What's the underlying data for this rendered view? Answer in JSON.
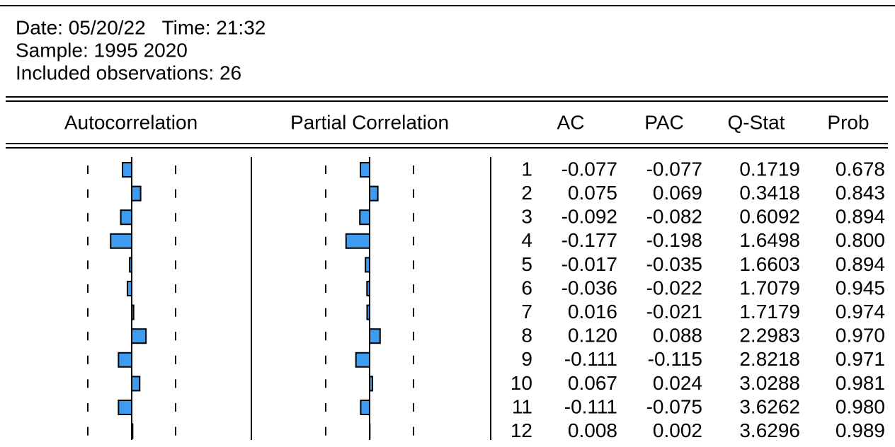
{
  "header": {
    "line1": "Date: 05/20/22   Time: 21:32",
    "line2": "Sample: 1995 2020",
    "line3": "Included observations: 26"
  },
  "table": {
    "columns": [
      "Autocorrelation",
      "Partial Correlation",
      "AC",
      "PAC",
      "Q-Stat",
      "Prob"
    ],
    "rows": [
      [
        "1",
        "-0.077",
        "-0.077",
        "0.1719",
        "0.678"
      ],
      [
        "2",
        "0.075",
        "0.069",
        "0.3418",
        "0.843"
      ],
      [
        "3",
        "-0.092",
        "-0.082",
        "0.6092",
        "0.894"
      ],
      [
        "4",
        "-0.177",
        "-0.198",
        "1.6498",
        "0.800"
      ],
      [
        "5",
        "-0.017",
        "-0.035",
        "1.6603",
        "0.894"
      ],
      [
        "6",
        "-0.036",
        "-0.022",
        "1.7079",
        "0.945"
      ],
      [
        "7",
        "0.016",
        "-0.021",
        "1.7179",
        "0.974"
      ],
      [
        "8",
        "0.120",
        "0.088",
        "2.2983",
        "0.970"
      ],
      [
        "9",
        "-0.111",
        "-0.115",
        "2.8218",
        "0.971"
      ],
      [
        "10",
        "0.067",
        "0.024",
        "3.0288",
        "0.981"
      ],
      [
        "11",
        "-0.111",
        "-0.075",
        "3.6262",
        "0.980"
      ],
      [
        "12",
        "0.008",
        "0.002",
        "3.6296",
        "0.989"
      ]
    ]
  }
}
